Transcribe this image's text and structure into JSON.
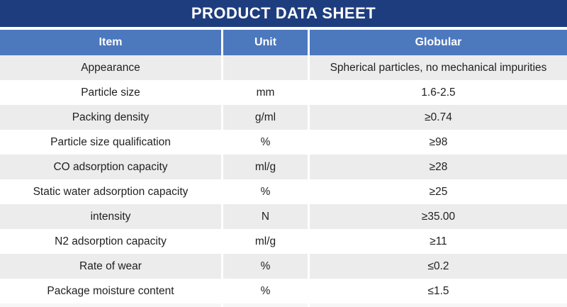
{
  "title": "PRODUCT DATA SHEET",
  "theme": {
    "title_bar_color": "#1e3d7e",
    "header_color": "#4c78bd",
    "alt_row_color": "#ececec",
    "text_color": "#1f1f1f"
  },
  "table": {
    "columns": [
      {
        "label": "Item"
      },
      {
        "label": "Unit"
      },
      {
        "label": "Globular"
      }
    ],
    "rows": [
      {
        "item": "Appearance",
        "unit": "",
        "value": "Spherical particles, no mechanical impurities"
      },
      {
        "item": "Particle size",
        "unit": "mm",
        "value": "1.6-2.5"
      },
      {
        "item": "Packing density",
        "unit": "g/ml",
        "value": "≥0.74"
      },
      {
        "item": "Particle size qualification",
        "unit": "%",
        "value": "≥98"
      },
      {
        "item": "CO adsorption capacity",
        "unit": "ml/g",
        "value": "≥28"
      },
      {
        "item": "Static water adsorption capacity",
        "unit": "%",
        "value": "≥25"
      },
      {
        "item": "intensity",
        "unit": "N",
        "value": "≥35.00"
      },
      {
        "item": "N2 adsorption capacity",
        "unit": "ml/g",
        "value": "≥11"
      },
      {
        "item": "Rate of wear",
        "unit": "%",
        "value": "≤0.2"
      },
      {
        "item": "Package moisture content",
        "unit": "%",
        "value": "≤1.5"
      }
    ]
  }
}
